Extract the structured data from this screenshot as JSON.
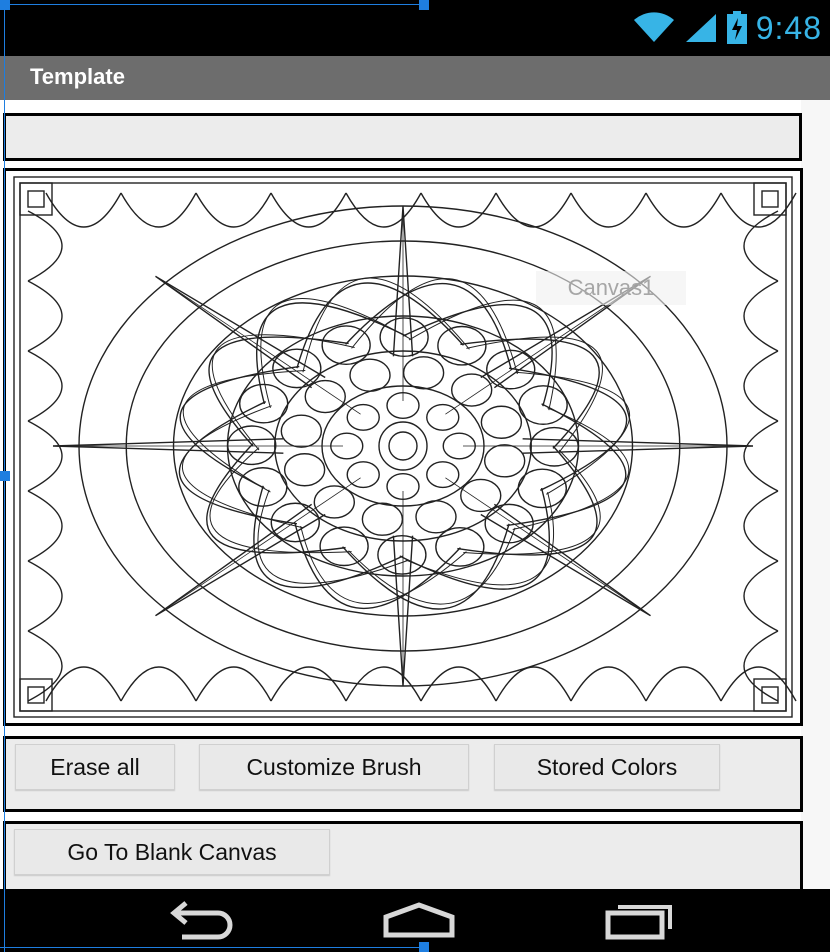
{
  "status_bar": {
    "time": "9:48",
    "icons": [
      "wifi-icon",
      "signal-icon",
      "battery-charging-icon"
    ],
    "accent_color": "#37b4e6"
  },
  "action_bar": {
    "title": "Template"
  },
  "canvas": {
    "component_label": "Canvas1",
    "image": "mandala-coloring-page"
  },
  "buttons_row_1": {
    "erase_all": "Erase all",
    "customize_brush": "Customize Brush",
    "stored_colors": "Stored Colors"
  },
  "buttons_row_2": {
    "go_to_blank_canvas": "Go To Blank Canvas"
  },
  "nav_bar": {
    "icons": [
      "back-icon",
      "home-icon",
      "recent-apps-icon"
    ]
  },
  "selection_color": "#1e7ee0"
}
